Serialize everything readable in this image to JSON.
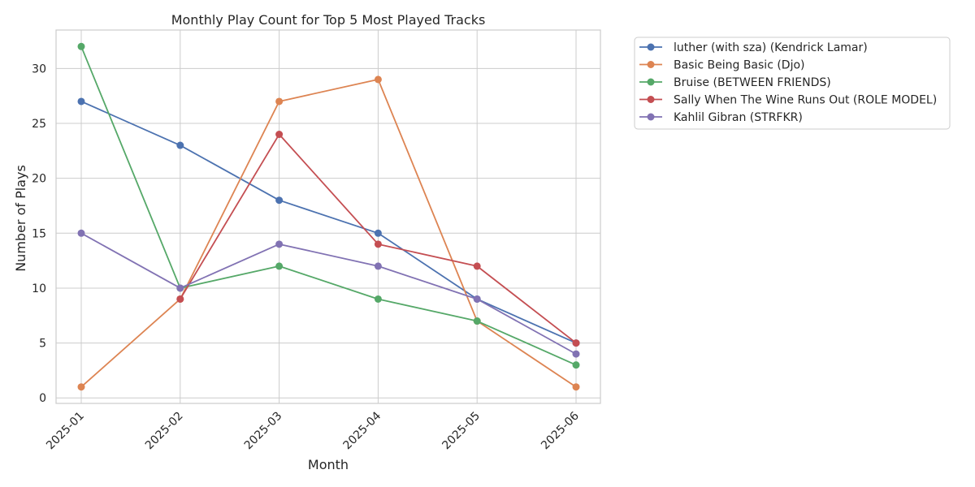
{
  "chart_data": {
    "type": "line",
    "title": "Monthly Play Count for Top 5 Most Played Tracks",
    "xlabel": "Month",
    "ylabel": "Number of Plays",
    "categories": [
      "2025-01",
      "2025-02",
      "2025-03",
      "2025-04",
      "2025-05",
      "2025-06"
    ],
    "ylim": [
      -0.5,
      33.5
    ],
    "yticks": [
      0,
      5,
      10,
      15,
      20,
      25,
      30
    ],
    "grid": true,
    "legend_position": "outside top-right",
    "series": [
      {
        "name": "luther (with sza) (Kendrick Lamar)",
        "color": "#4c72b0",
        "values": [
          27,
          23,
          18,
          15,
          9,
          5
        ]
      },
      {
        "name": "Basic Being Basic (Djo)",
        "color": "#dd8452",
        "values": [
          1,
          9,
          27,
          29,
          7,
          1
        ]
      },
      {
        "name": "Bruise (BETWEEN FRIENDS)",
        "color": "#55a868",
        "values": [
          32,
          10,
          12,
          9,
          7,
          3
        ]
      },
      {
        "name": "Sally  When The Wine Runs Out (ROLE MODEL)",
        "color": "#c44e52",
        "values": [
          null,
          9,
          24,
          14,
          12,
          5
        ]
      },
      {
        "name": "Kahlil Gibran (STRFKR)",
        "color": "#8172b3",
        "values": [
          15,
          10,
          14,
          12,
          9,
          4
        ]
      }
    ]
  }
}
